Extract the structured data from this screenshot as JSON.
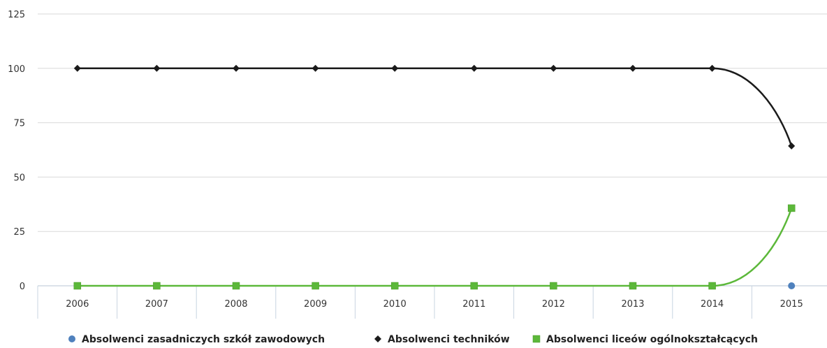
{
  "chart_data": {
    "type": "line",
    "categories": [
      "2006",
      "2007",
      "2008",
      "2009",
      "2010",
      "2011",
      "2012",
      "2013",
      "2014",
      "2015"
    ],
    "ylim": [
      0,
      125
    ],
    "yticks": [
      "0",
      "25",
      "50",
      "75",
      "100",
      "125"
    ],
    "grid": "horizontal",
    "legend_position": "bottom",
    "series": [
      {
        "name": "Absolwenci zasadniczych szkół zawodowych",
        "marker": "circle",
        "color": "#4f81bd",
        "values": [
          null,
          null,
          null,
          null,
          null,
          null,
          null,
          null,
          null,
          0
        ]
      },
      {
        "name": "Absolwenci techników",
        "marker": "diamond",
        "color": "#1a1a1a",
        "values": [
          100,
          100,
          100,
          100,
          100,
          100,
          100,
          100,
          100,
          64.3
        ]
      },
      {
        "name": "Absolwenci liceów ogólnokształcących",
        "marker": "square",
        "color": "#5cb83a",
        "values": [
          0,
          0,
          0,
          0,
          0,
          0,
          0,
          0,
          0,
          35.7
        ]
      }
    ]
  }
}
